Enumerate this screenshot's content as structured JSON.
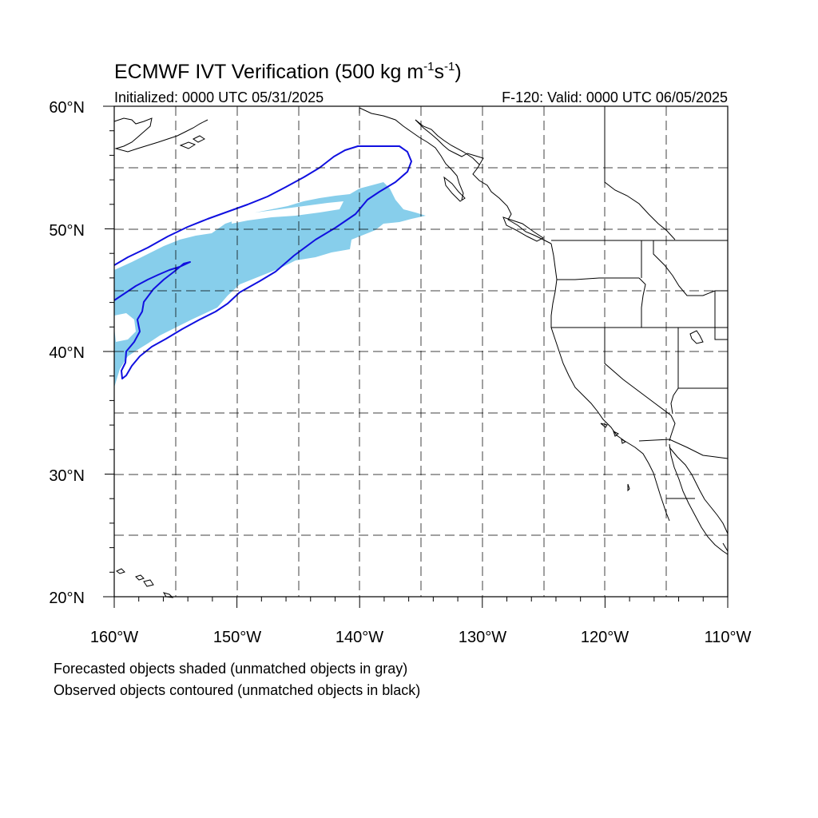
{
  "title_main": "ECMWF IVT Verification (500 kg m",
  "title_exp1": "-1",
  "title_mid": "s",
  "title_exp2": "-1",
  "title_end": ")",
  "initialized": "Initialized: 0000 UTC 05/31/2025",
  "valid": "F-120: Valid: 0000 UTC 06/05/2025",
  "lat_labels": [
    "60°N",
    "50°N",
    "40°N",
    "30°N",
    "20°N"
  ],
  "lon_labels": [
    "160°W",
    "150°W",
    "140°W",
    "130°W",
    "120°W",
    "110°W"
  ],
  "legend_line1": "Forecasted objects shaded (unmatched objects in gray)",
  "legend_line2": "Observed objects contoured (unmatched objects in black)",
  "colors": {
    "forecast_matched": "#87ceeb",
    "observed_matched": "#1010e0",
    "forecast_unmatched": "gray",
    "observed_unmatched": "black"
  }
}
